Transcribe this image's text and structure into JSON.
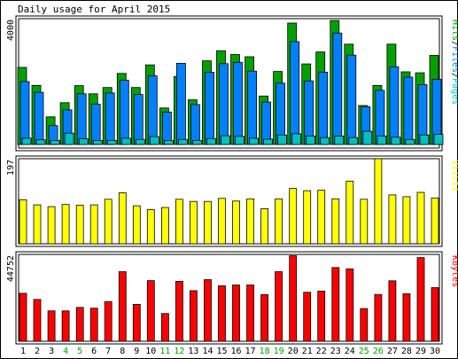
{
  "title": "Daily usage for April 2015",
  "chart_data": [
    {
      "type": "bar",
      "panel": "hits-files-pages",
      "max_label": "4000",
      "legend": [
        {
          "name": "Pages",
          "color": "#00c0c0"
        },
        {
          "name": "Files",
          "color": "#0080ff"
        },
        {
          "name": "Hits",
          "color": "#00a000"
        }
      ],
      "label_separator": "/",
      "ylim": [
        0,
        4000
      ],
      "x": [
        1,
        2,
        3,
        4,
        5,
        6,
        7,
        8,
        9,
        10,
        11,
        12,
        13,
        14,
        15,
        16,
        17,
        18,
        19,
        20,
        21,
        22,
        23,
        24,
        25,
        26,
        27,
        28,
        29,
        30
      ],
      "series": [
        {
          "name": "Hits",
          "color": "#00a000",
          "values": [
            2450,
            1880,
            880,
            1330,
            1870,
            1610,
            1810,
            2260,
            1810,
            2530,
            1160,
            2160,
            1420,
            2660,
            2980,
            2860,
            2790,
            1540,
            2320,
            3860,
            2560,
            2940,
            3940,
            3190,
            1240,
            1880,
            3190,
            2310,
            2280,
            2830
          ]
        },
        {
          "name": "Files",
          "color": "#0080ff",
          "values": [
            2000,
            1660,
            600,
            1100,
            1610,
            1280,
            1640,
            2040,
            1590,
            2180,
            1030,
            2580,
            1270,
            2300,
            2570,
            2610,
            2330,
            1350,
            1950,
            3270,
            2020,
            2300,
            3540,
            2840,
            1200,
            1720,
            2470,
            2140,
            1900,
            2070
          ]
        },
        {
          "name": "Pages",
          "color": "#00c0c0",
          "values": [
            200,
            150,
            130,
            360,
            180,
            130,
            130,
            200,
            160,
            250,
            130,
            160,
            130,
            190,
            280,
            260,
            200,
            170,
            300,
            340,
            270,
            220,
            270,
            220,
            420,
            270,
            230,
            160,
            300,
            320
          ]
        }
      ]
    },
    {
      "type": "bar",
      "panel": "visits",
      "max_label": "197",
      "legend": [
        {
          "name": "Visits",
          "color": "#ffff00"
        }
      ],
      "ylim": [
        0,
        197
      ],
      "series": [
        {
          "name": "Visits",
          "color": "#ffff00",
          "values": [
            102,
            90,
            86,
            91,
            89,
            90,
            103,
            118,
            88,
            79,
            84,
            103,
            98,
            98,
            105,
            99,
            104,
            81,
            104,
            128,
            123,
            124,
            104,
            145,
            103,
            197,
            113,
            109,
            119,
            106
          ]
        }
      ]
    },
    {
      "type": "bar",
      "panel": "kbytes",
      "max_label": "44752",
      "legend": [
        {
          "name": "KBytes",
          "color": "#ff0000"
        }
      ],
      "ylim": [
        0,
        44752
      ],
      "series": [
        {
          "name": "KBytes",
          "color": "#ff0000",
          "values": [
            25200,
            22000,
            16000,
            16000,
            17800,
            17400,
            20900,
            36600,
            19400,
            31900,
            14600,
            31500,
            26600,
            32400,
            29200,
            29600,
            29600,
            24500,
            36600,
            45000,
            25800,
            26400,
            38800,
            38100,
            17200,
            24600,
            31800,
            25000,
            44000,
            28200
          ]
        }
      ]
    }
  ],
  "x_tick_colors": {
    "weekday": "#000000",
    "weekend": "#00a000"
  },
  "weekend_days": [
    4,
    5,
    11,
    12,
    18,
    19,
    25,
    26
  ]
}
